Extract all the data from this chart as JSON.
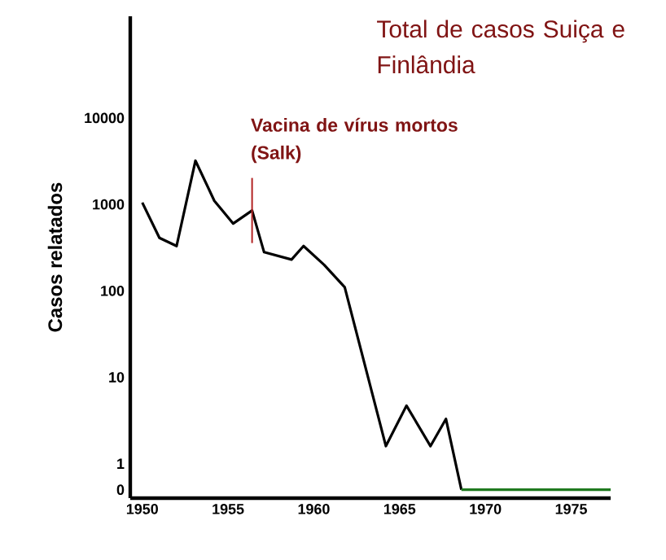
{
  "chart_data": {
    "type": "line",
    "title": "Total de casos Suiça e Finlândia",
    "ylabel": "Casos relatados",
    "x": [
      1950.0,
      1951.0,
      1952.0,
      1953.1,
      1954.2,
      1955.3,
      1956.4,
      1957.1,
      1958.7,
      1959.4,
      1960.6,
      1961.8,
      1964.2,
      1965.4,
      1966.8,
      1967.7,
      1968.6
    ],
    "series": [
      {
        "color": "#000000",
        "values": [
          1050,
          410,
          330,
          3200,
          1100,
          600,
          850,
          280,
          230,
          330,
          200,
          110,
          1.6,
          4.7,
          1.6,
          3.3,
          0.5
        ]
      },
      {
        "color": "#1f7a1f",
        "x": [
          1968.6,
          1977.3
        ],
        "values": [
          0.5,
          0.5
        ]
      }
    ],
    "log": "y",
    "xlim": [
      1949.3,
      1977.3
    ],
    "ylim": [
      0.4,
      150000
    ],
    "xticks": [
      1950,
      1955,
      1960,
      1965,
      1970,
      1975
    ],
    "yticks": [
      {
        "value": 0.5,
        "label": "0"
      },
      1,
      10,
      100,
      1000,
      10000
    ],
    "annotations": [
      {
        "text": "Vacina de vírus mortos (Salk)",
        "x": 1956.4,
        "y": 850
      }
    ]
  }
}
